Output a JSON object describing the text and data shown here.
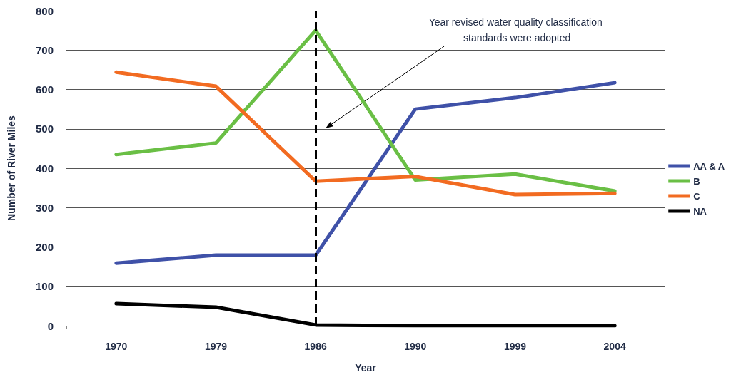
{
  "chart_data": {
    "type": "line",
    "xlabel": "Year",
    "ylabel": "Number of River Miles",
    "categories": [
      "1970",
      "1979",
      "1986",
      "1990",
      "1999",
      "2004"
    ],
    "series": [
      {
        "name": "AA & A",
        "color": "#3f51a8",
        "values": [
          159,
          179,
          179,
          550,
          579,
          617
        ]
      },
      {
        "name": "B",
        "color": "#6abf45",
        "values": [
          435,
          464,
          750,
          370,
          385,
          342
        ]
      },
      {
        "name": "C",
        "color": "#f26b21",
        "values": [
          644,
          608,
          367,
          379,
          333,
          336
        ]
      },
      {
        "name": "NA",
        "color": "#000000",
        "values": [
          56,
          47,
          2,
          0,
          0,
          0
        ]
      }
    ],
    "ylim": [
      0,
      800
    ],
    "yticks": [
      0,
      100,
      200,
      300,
      400,
      500,
      600,
      700,
      800
    ],
    "grid": "y",
    "legend": "right",
    "marker": "none",
    "line_style": "solid",
    "ref_lines": [
      {
        "axis": "x",
        "value": "1986",
        "color": "#000000",
        "line_style": "dashed"
      }
    ],
    "annotations": [
      "Year revised water quality classification standards were adopted"
    ]
  }
}
